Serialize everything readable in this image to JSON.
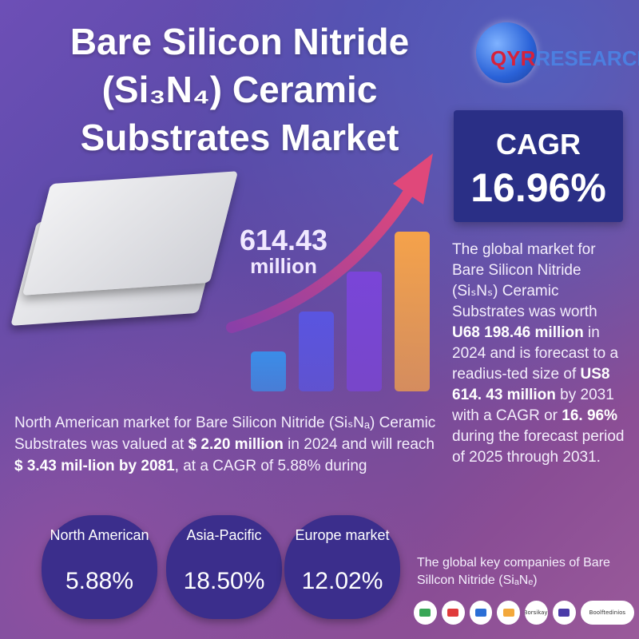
{
  "title": {
    "line1": "Bare Silicon Nitride",
    "line2": "(Si₃N₄) Ceramic",
    "line3": "Substrates Market"
  },
  "logo": {
    "text_main": "QYR",
    "text_sub": "RESEARCH"
  },
  "cagr": {
    "label": "CAGR",
    "value": "16.96%"
  },
  "market_size": {
    "value": "614.43",
    "unit": "million"
  },
  "chart_data": {
    "type": "bar",
    "values": [
      1,
      2,
      3,
      4
    ],
    "colors": [
      "#3b8de8",
      "#5a55e0",
      "#7a45d8",
      "#f5a24a"
    ]
  },
  "right_paragraph": {
    "part1": "The global market for Bare Silicon Nitride (SiₛNₛ) Ceramic Substrates was worth ",
    "bold1": "U68 198.46 million",
    "part2": " in 2024 and is forecast to a readius-ted size of ",
    "bold2": "US8 614. 43 million",
    "part3": " by ",
    "bold3": "2031",
    "part4": " with a CAGR or ",
    "bold4": "16. 96%",
    "part5": " during the forecast period of 2025 through 2031."
  },
  "left_paragraph": {
    "part1": "North American market for Bare Silicon Nitride (SiₛNₐ) Ceramic Substrates was valued at ",
    "bold1": "$ 2.20 million",
    "part2": " in 2024 and will reach ",
    "bold2": "$ 3.43 mil-lion by 2081",
    "part3": ", at a CAGR of 5.88% during"
  },
  "regions": [
    {
      "name": "North American",
      "value": "5.88%"
    },
    {
      "name": "Asia-Pacific",
      "value": "18.50%"
    },
    {
      "name": "Europe market",
      "value": "12.02%"
    }
  ],
  "key_companies": {
    "text": "The global key companies of Bare Sillcon Nitride (SiₐNₑ)",
    "badges": [
      "",
      "",
      "",
      "",
      "Borsikayi",
      "",
      "Boolftedinios"
    ]
  },
  "colors": {
    "cagr_box": "#2a2f86",
    "region_circle": "#3b2e8c",
    "arrow": "#e0487a"
  }
}
